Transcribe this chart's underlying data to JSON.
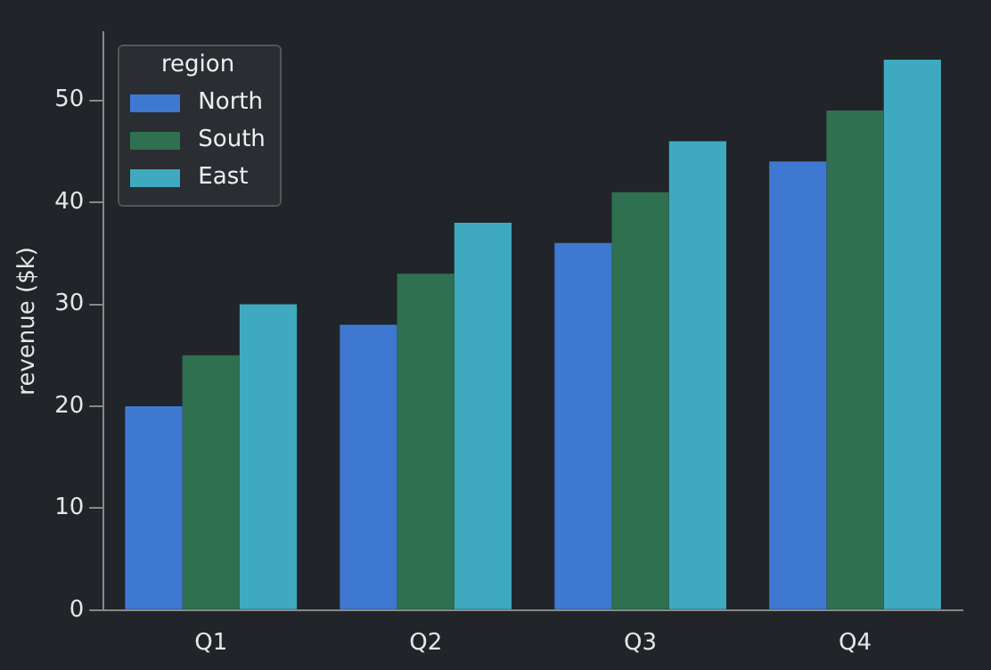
{
  "chart_data": {
    "type": "bar",
    "ylabel": "revenue ($k)",
    "legend_title": "region",
    "categories": [
      "Q1",
      "Q2",
      "Q3",
      "Q4"
    ],
    "series": [
      {
        "name": "North",
        "color": "#3f78d0",
        "values": [
          20,
          28,
          36,
          44
        ]
      },
      {
        "name": "South",
        "color": "#2e7050",
        "values": [
          25,
          33,
          41,
          49
        ]
      },
      {
        "name": "East",
        "color": "#3fa9c0",
        "values": [
          30,
          38,
          46,
          54
        ]
      }
    ],
    "ylim": [
      0,
      56.7
    ],
    "yticks": [
      0,
      10,
      20,
      30,
      40,
      50
    ],
    "grid": false,
    "legend": "top left"
  }
}
